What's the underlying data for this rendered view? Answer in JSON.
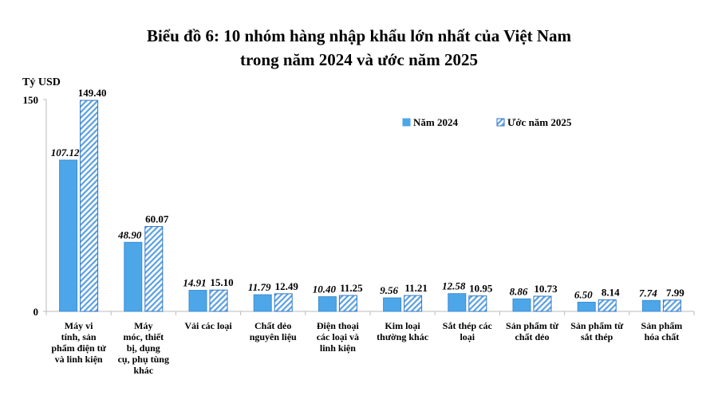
{
  "chart_data": {
    "type": "bar",
    "title": [
      "Biểu đồ 6: 10 nhóm hàng nhập khẩu lớn nhất của Việt Nam",
      "trong năm 2024 và ước năm 2025"
    ],
    "ylabel": "Tỷ USD",
    "xlabel": "",
    "ylim": [
      0,
      150
    ],
    "yticks": [
      "0",
      "150"
    ],
    "grid": false,
    "legend_position": "top-right",
    "categories": [
      [
        "Máy vi",
        "tính, sản",
        "phẩm điện tử",
        "và linh kiện"
      ],
      [
        "Máy",
        "móc, thiết",
        "bị, dụng",
        "cụ, phụ tùng",
        "khác"
      ],
      [
        "Vải các loại"
      ],
      [
        "Chất dẻo",
        "nguyên liệu"
      ],
      [
        "Điện thoại",
        "các loại và",
        "linh kiện"
      ],
      [
        "Kim loại",
        "thường khác"
      ],
      [
        "Sắt thép các",
        "loại"
      ],
      [
        "Sản phẩm từ",
        "chất dẻo"
      ],
      [
        "Sản phẩm từ",
        "sắt thép"
      ],
      [
        "Sản phẩm",
        "hóa chất"
      ]
    ],
    "series": [
      {
        "name": "Năm 2024",
        "color": "#4da6e8",
        "style": "solid",
        "values": [
          107.12,
          48.9,
          14.91,
          11.79,
          10.4,
          9.56,
          12.58,
          8.86,
          6.5,
          7.74
        ],
        "labels": [
          "107.12",
          "48.90",
          "14.91",
          "11.79",
          "10.40",
          "9.56",
          "12.58",
          "8.86",
          "6.50",
          "7.74"
        ]
      },
      {
        "name": "Ước năm 2025",
        "color": "#2e75c6",
        "style": "hatched",
        "values": [
          149.4,
          60.07,
          15.1,
          12.49,
          11.25,
          11.21,
          10.95,
          10.73,
          8.14,
          7.99
        ],
        "labels": [
          "149.40",
          "60.07",
          "15.10",
          "12.49",
          "11.25",
          "11.21",
          "10.95",
          "10.73",
          "8.14",
          "7.99"
        ]
      }
    ]
  }
}
